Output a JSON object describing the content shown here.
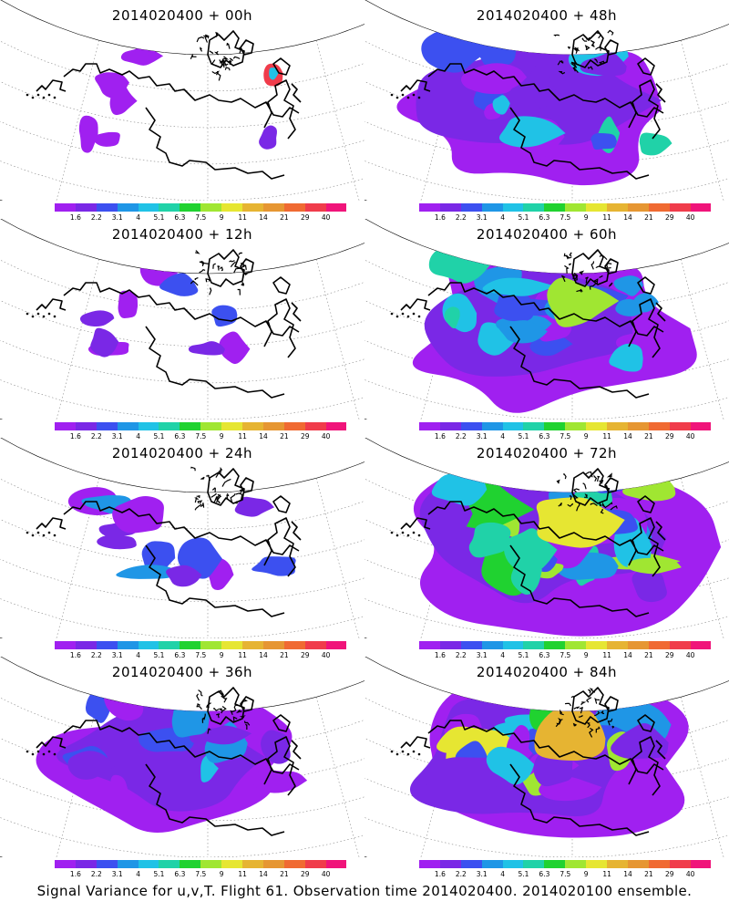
{
  "palette": [
    "#a020f0",
    "#7a28e6",
    "#3c50f0",
    "#1f96e6",
    "#20c2e6",
    "#20d2a8",
    "#20d230",
    "#a0e632",
    "#e6e632",
    "#e6b432",
    "#e69632",
    "#f06a32",
    "#f03c4b",
    "#f0147a"
  ],
  "colorbar_labels": [
    "1.6",
    "2.2",
    "3.1",
    "4",
    "5.1",
    "6.3",
    "7.5",
    "9",
    "11",
    "14",
    "21",
    "29",
    "40"
  ],
  "panels": [
    {
      "title": "2014020400 + 00h",
      "level": 0
    },
    {
      "title": "2014020400 + 48h",
      "level": 4
    },
    {
      "title": "2014020400 + 12h",
      "level": 1
    },
    {
      "title": "2014020400 + 60h",
      "level": 5
    },
    {
      "title": "2014020400 + 24h",
      "level": 2
    },
    {
      "title": "2014020400 + 72h",
      "level": 6
    },
    {
      "title": "2014020400 + 36h",
      "level": 3
    },
    {
      "title": "2014020400 + 84h",
      "level": 7
    }
  ],
  "footer": "Signal Variance for u,v,T. Flight 61. Observation time 2014020400. 2014020100 ensemble."
}
